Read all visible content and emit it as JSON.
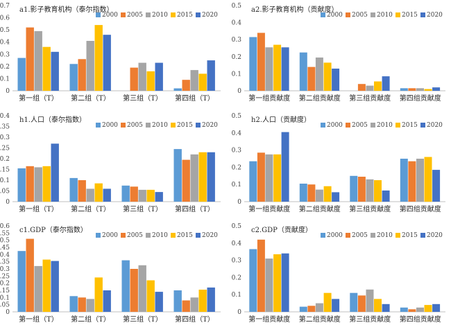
{
  "series_names": [
    "2000",
    "2005",
    "2010",
    "2015",
    "2020"
  ],
  "colors": [
    "#5b9bd5",
    "#ed7d31",
    "#a5a5a5",
    "#ffc000",
    "#4472c4"
  ],
  "chart_data": [
    {
      "type": "bar",
      "title": "a1.影子教育机构（泰尔指数）",
      "categories": [
        "第一组（T）",
        "第二组（T）",
        "第三组（T）",
        "第四组（T）"
      ],
      "ylim": [
        0,
        0.7
      ],
      "yticks": [
        "0",
        "0.1",
        "0.2",
        "0.3",
        "0.4",
        "0.5",
        "0.6",
        "0.7"
      ],
      "series": [
        {
          "name": "2000",
          "values": [
            0.27,
            0.22,
            0.0,
            0.02
          ]
        },
        {
          "name": "2005",
          "values": [
            0.52,
            0.26,
            0.19,
            0.09
          ]
        },
        {
          "name": "2010",
          "values": [
            0.49,
            0.41,
            0.23,
            0.17
          ]
        },
        {
          "name": "2015",
          "values": [
            0.36,
            0.54,
            0.16,
            0.14
          ]
        },
        {
          "name": "2020",
          "values": [
            0.32,
            0.46,
            0.23,
            0.25
          ]
        }
      ]
    },
    {
      "type": "bar",
      "title": "a2.影子教育机构（贡献度）",
      "categories": [
        "第一组贡献度",
        "第二组贡献度",
        "第三组贡献度",
        "第四组贡献度"
      ],
      "ylim": [
        0,
        0.5
      ],
      "yticks": [
        "0",
        "0.1",
        "0.2",
        "0.3",
        "0.4",
        "0.5"
      ],
      "series": [
        {
          "name": "2000",
          "values": [
            0.315,
            0.225,
            0.0,
            0.015
          ]
        },
        {
          "name": "2005",
          "values": [
            0.34,
            0.14,
            0.04,
            0.015
          ]
        },
        {
          "name": "2010",
          "values": [
            0.255,
            0.195,
            0.03,
            0.015
          ]
        },
        {
          "name": "2015",
          "values": [
            0.27,
            0.165,
            0.055,
            0.01
          ]
        },
        {
          "name": "2020",
          "values": [
            0.255,
            0.13,
            0.085,
            0.02
          ]
        }
      ]
    },
    {
      "type": "bar",
      "title": "h1.人口（泰尔指数）",
      "categories": [
        "第一组（T）",
        "第二组（T）",
        "第三组（T）",
        "第四组（T）"
      ],
      "ylim": [
        0,
        0.4
      ],
      "yticks": [
        "0",
        "0.05",
        "0.1",
        "0.15",
        "0.2",
        "0.25",
        "0.3",
        "0.35",
        "0.4"
      ],
      "series": [
        {
          "name": "2000",
          "values": [
            0.155,
            0.11,
            0.075,
            0.245
          ]
        },
        {
          "name": "2005",
          "values": [
            0.165,
            0.1,
            0.07,
            0.195
          ]
        },
        {
          "name": "2010",
          "values": [
            0.16,
            0.06,
            0.055,
            0.22
          ]
        },
        {
          "name": "2015",
          "values": [
            0.165,
            0.085,
            0.055,
            0.23
          ]
        },
        {
          "name": "2020",
          "values": [
            0.27,
            0.06,
            0.045,
            0.23
          ]
        }
      ]
    },
    {
      "type": "bar",
      "title": "h2.人口（贡献度）",
      "categories": [
        "第一组贡献度",
        "第二组贡献度",
        "第三组贡献度",
        "第四组贡献度"
      ],
      "ylim": [
        0,
        0.5
      ],
      "yticks": [
        "0",
        "0.1",
        "0.2",
        "0.3",
        "0.4",
        "0.5"
      ],
      "series": [
        {
          "name": "2000",
          "values": [
            0.235,
            0.105,
            0.15,
            0.25
          ]
        },
        {
          "name": "2005",
          "values": [
            0.285,
            0.1,
            0.145,
            0.235
          ]
        },
        {
          "name": "2010",
          "values": [
            0.275,
            0.07,
            0.13,
            0.25
          ]
        },
        {
          "name": "2015",
          "values": [
            0.275,
            0.09,
            0.125,
            0.26
          ]
        },
        {
          "name": "2020",
          "values": [
            0.405,
            0.055,
            0.065,
            0.185
          ]
        }
      ]
    },
    {
      "type": "bar",
      "title": "c1.GDP（泰尔指数）",
      "categories": [
        "第一组（T）",
        "第二组（T）",
        "第三组（T）",
        "第四组（T）"
      ],
      "ylim": [
        0,
        0.6
      ],
      "yticks": [
        "0",
        "0.05",
        "0.1",
        "0.15",
        "0.2",
        "0.25",
        "0.3",
        "0.35",
        "0.4",
        "0.45",
        "0.5",
        "0.55",
        "0.6"
      ],
      "series": [
        {
          "name": "2000",
          "values": [
            0.425,
            0.11,
            0.36,
            0.15
          ]
        },
        {
          "name": "2005",
          "values": [
            0.51,
            0.1,
            0.3,
            0.08
          ]
        },
        {
          "name": "2010",
          "values": [
            0.32,
            0.09,
            0.325,
            0.1
          ]
        },
        {
          "name": "2015",
          "values": [
            0.365,
            0.24,
            0.22,
            0.155
          ]
        },
        {
          "name": "2020",
          "values": [
            0.355,
            0.15,
            0.14,
            0.17
          ]
        }
      ]
    },
    {
      "type": "bar",
      "title": "c2.GDP（贡献度）",
      "categories": [
        "第一组贡献度",
        "第二组贡献度",
        "第三组贡献度",
        "第四组贡献度"
      ],
      "ylim": [
        0,
        0.5
      ],
      "yticks": [
        "0",
        "0.1",
        "0.2",
        "0.3",
        "0.4",
        "0.5"
      ],
      "series": [
        {
          "name": "2000",
          "values": [
            0.365,
            0.03,
            0.11,
            0.025
          ]
        },
        {
          "name": "2005",
          "values": [
            0.42,
            0.035,
            0.095,
            0.015
          ]
        },
        {
          "name": "2010",
          "values": [
            0.31,
            0.05,
            0.13,
            0.025
          ]
        },
        {
          "name": "2015",
          "values": [
            0.335,
            0.11,
            0.075,
            0.04
          ]
        },
        {
          "name": "2020",
          "values": [
            0.34,
            0.075,
            0.045,
            0.045
          ]
        }
      ]
    }
  ]
}
